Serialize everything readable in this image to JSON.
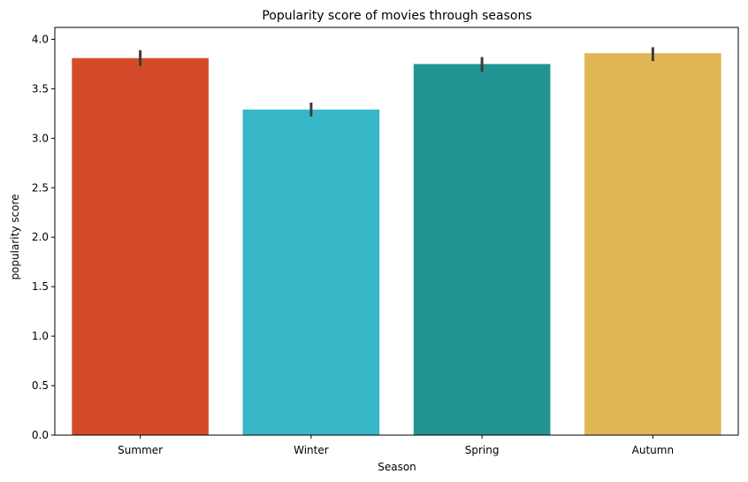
{
  "chart_data": {
    "type": "bar",
    "title": "Popularity score of movies through seasons",
    "xlabel": "Season",
    "ylabel": "popularity score",
    "categories": [
      "Summer",
      "Winter",
      "Spring",
      "Autumn"
    ],
    "values": [
      3.81,
      3.29,
      3.75,
      3.86
    ],
    "error_low": [
      3.73,
      3.22,
      3.67,
      3.78
    ],
    "error_high": [
      3.89,
      3.36,
      3.82,
      3.92
    ],
    "colors": [
      "#d44b2a",
      "#36b8c9",
      "#219494",
      "#e1b755"
    ],
    "ylim": [
      0,
      4.12
    ],
    "yticks": [
      0.0,
      0.5,
      1.0,
      1.5,
      2.0,
      2.5,
      3.0,
      3.5,
      4.0
    ],
    "ytick_labels": [
      "0.0",
      "0.5",
      "1.0",
      "1.5",
      "2.0",
      "2.5",
      "3.0",
      "3.5",
      "4.0"
    ],
    "grid": false,
    "legend": "none"
  }
}
